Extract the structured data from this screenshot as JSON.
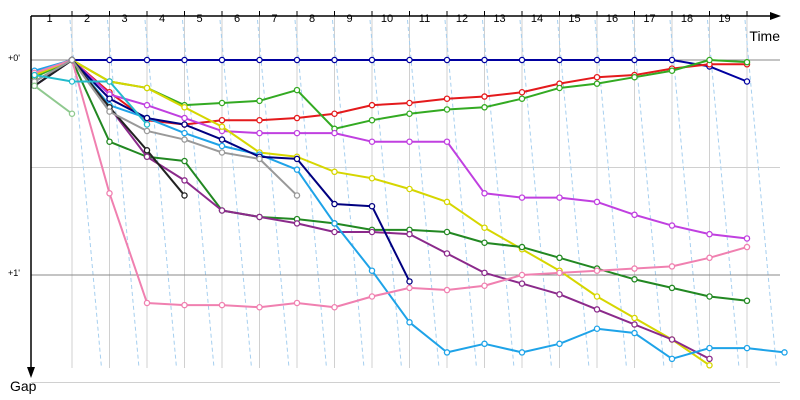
{
  "chart_data": {
    "type": "line",
    "title": "",
    "xlabel": "Time",
    "ylabel": "Gap",
    "x_ticks": [
      "1",
      "2",
      "3",
      "4",
      "5",
      "6",
      "7",
      "8",
      "9",
      "10",
      "11",
      "12",
      "13",
      "14",
      "15",
      "16",
      "17",
      "18",
      "19"
    ],
    "y_ticks": [
      {
        "label": "+0'",
        "value": 0
      },
      {
        "label": "+1'",
        "value": 1
      }
    ],
    "xlim": [
      1,
      21
    ],
    "ylim": [
      0,
      1.38
    ],
    "y_direction": "down",
    "grid": true,
    "legend": "none",
    "colors": {
      "axis": "#000000",
      "grid_major": "#888888",
      "grid_minor": "#d0d0d0",
      "lap_lines": "#a6cfef"
    },
    "series": [
      {
        "color": "#0000a0",
        "values": [
          0.07,
          0,
          0,
          0,
          0,
          0,
          0,
          0,
          0,
          0,
          0,
          0,
          0,
          0,
          0,
          0,
          0,
          0,
          0.03,
          0.1
        ]
      },
      {
        "color": "#e41a1c",
        "values": [
          0.07,
          0,
          0.15,
          0.28,
          0.3,
          0.28,
          0.28,
          0.27,
          0.25,
          0.21,
          0.2,
          0.18,
          0.17,
          0.15,
          0.11,
          0.08,
          0.07,
          0.04,
          0.02,
          0.02
        ]
      },
      {
        "color": "#33aa22",
        "values": [
          0.08,
          0,
          0.1,
          0.13,
          0.21,
          0.2,
          0.19,
          0.14,
          0.32,
          0.28,
          0.25,
          0.23,
          0.22,
          0.18,
          0.13,
          0.11,
          0.08,
          0.05,
          0.0,
          0.01
        ]
      },
      {
        "color": "#c040e0",
        "values": [
          0.1,
          0,
          0.16,
          0.21,
          0.27,
          0.33,
          0.34,
          0.34,
          0.34,
          0.38,
          0.38,
          0.38,
          0.62,
          0.64,
          0.64,
          0.66,
          0.72,
          0.77,
          0.81,
          0.83
        ]
      },
      {
        "color": "#d6d600",
        "values": [
          0.07,
          0,
          0.1,
          0.13,
          0.22,
          0.31,
          0.43,
          0.45,
          0.52,
          0.55,
          0.6,
          0.66,
          0.78,
          0.88,
          0.98,
          1.1,
          1.2,
          1.3,
          1.42
        ]
      },
      {
        "color": "#228822",
        "values": [
          0.1,
          0,
          0.38,
          0.45,
          0.47,
          0.7,
          0.73,
          0.74,
          0.76,
          0.79,
          0.79,
          0.8,
          0.85,
          0.87,
          0.92,
          0.97,
          1.02,
          1.06,
          1.1,
          1.12
        ]
      },
      {
        "color": "#8b2a8b",
        "values": [
          0.12,
          0,
          0.22,
          0.45,
          0.56,
          0.7,
          0.73,
          0.76,
          0.8,
          0.8,
          0.81,
          0.9,
          0.99,
          1.04,
          1.09,
          1.16,
          1.23,
          1.3,
          1.39
        ]
      },
      {
        "color": "#1ea3e8",
        "values": [
          0.05,
          0,
          0.21,
          0.27,
          0.34,
          0.4,
          0.44,
          0.51,
          0.76,
          0.98,
          1.22,
          1.36,
          1.32,
          1.36,
          1.32,
          1.25,
          1.27,
          1.39,
          1.34,
          1.34,
          1.36
        ]
      },
      {
        "color": "#f080b0",
        "values": [
          0.06,
          0,
          0.62,
          1.13,
          1.14,
          1.14,
          1.15,
          1.13,
          1.15,
          1.1,
          1.06,
          1.07,
          1.05,
          1.0,
          0.99,
          0.98,
          0.97,
          0.96,
          0.92,
          0.87
        ]
      },
      {
        "color": "#000080",
        "values": [
          0.12,
          0,
          0.18,
          0.27,
          0.3,
          0.37,
          0.45,
          0.46,
          0.67,
          0.68,
          1.03
        ]
      },
      {
        "color": "#222222",
        "values": [
          0.12,
          0,
          0.22,
          0.42,
          0.63
        ]
      },
      {
        "color": "#999999",
        "values": [
          0.1,
          0,
          0.24,
          0.33,
          0.37,
          0.43,
          0.46,
          0.63
        ]
      },
      {
        "color": "#8fc98f",
        "values": [
          0.12,
          0.25
        ]
      },
      {
        "color": "#22bbcc",
        "values": [
          0.07,
          0.1,
          0.1,
          0.3
        ]
      }
    ]
  }
}
